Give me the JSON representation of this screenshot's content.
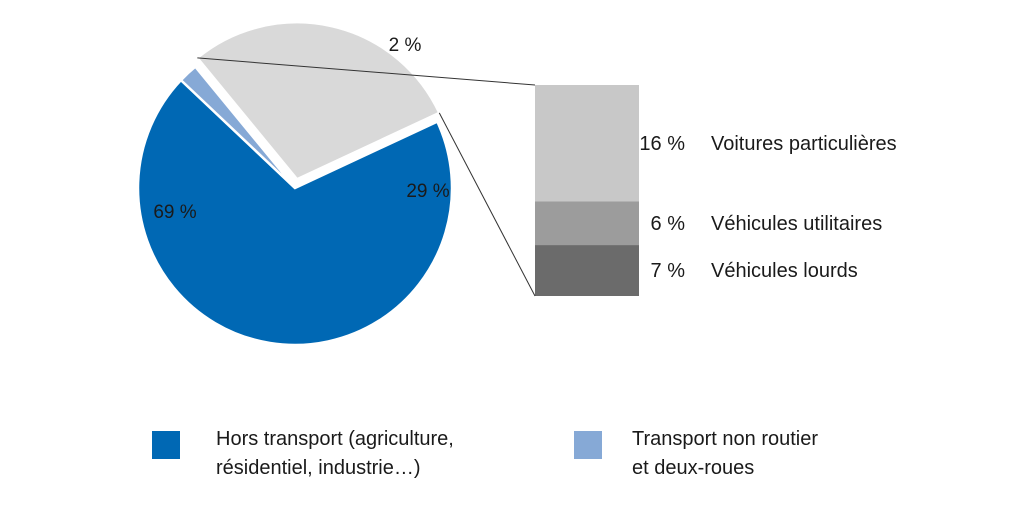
{
  "chart_data": {
    "type": "pie",
    "slices": [
      {
        "name": "Hors transport (agriculture,\nrésidentiel, industrie…)",
        "value": 69,
        "label": "69 %",
        "color": "#0068b4"
      },
      {
        "name": "Transport non routier\net deux-roues",
        "value": 2,
        "label": "2 %",
        "color": "#86a9d6"
      },
      {
        "name": "",
        "value": 29,
        "label": "29 %",
        "color": "#d9d9d9",
        "exploded": true
      }
    ],
    "breakdown": {
      "type": "bar",
      "stacked": true,
      "of_slice_value": 29,
      "segments": [
        {
          "name": "Voitures particulières",
          "value": 16,
          "label": "16 %",
          "color": "#c8c8c8"
        },
        {
          "name": "Véhicules utilitaires",
          "value": 6,
          "label": "6 %",
          "color": "#9c9c9c"
        },
        {
          "name": "Véhicules lourds",
          "value": 7,
          "label": "7 %",
          "color": "#6b6b6b"
        }
      ]
    },
    "legend": {
      "placement": "bottom",
      "items": [
        {
          "label": "Hors transport (agriculture,\nrésidentiel, industrie…)",
          "color": "#0068b4"
        },
        {
          "label": "Transport non routier\net deux-roues",
          "color": "#86a9d6"
        }
      ]
    }
  }
}
